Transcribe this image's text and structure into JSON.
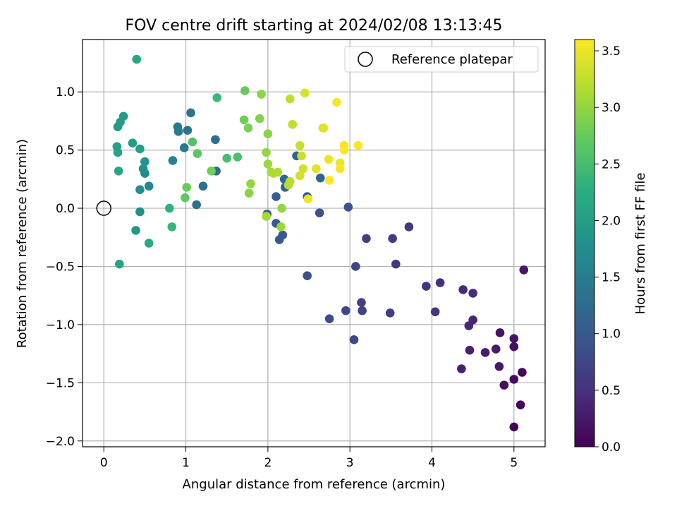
{
  "chart_data": {
    "type": "scatter",
    "title": "FOV centre drift starting at 2024/02/08 13:13:45",
    "xlabel": "Angular distance from reference (arcmin)",
    "ylabel": "Rotation from reference (arcmin)",
    "xlim": [
      -0.26,
      5.38
    ],
    "ylim": [
      -2.05,
      1.45
    ],
    "xticks": [
      0,
      1,
      2,
      3,
      4,
      5
    ],
    "xtick_labels": [
      "0",
      "1",
      "2",
      "3",
      "4",
      "5"
    ],
    "yticks": [
      -2.0,
      -1.5,
      -1.0,
      -0.5,
      0.0,
      0.5,
      1.0
    ],
    "ytick_labels": [
      "−2.0",
      "−1.5",
      "−1.0",
      "−0.5",
      "0.0",
      "0.5",
      "1.0"
    ],
    "grid": true,
    "legend": {
      "location": "top-right",
      "entries": [
        "Reference platepar"
      ]
    },
    "reference_point": {
      "x": 0,
      "y": 0,
      "label": "Reference platepar"
    },
    "colorbar": {
      "label": "Hours from first FF file",
      "colormap": "viridis",
      "range": [
        0.0,
        3.6
      ],
      "ticks": [
        0.0,
        0.5,
        1.0,
        1.5,
        2.0,
        2.5,
        3.0,
        3.5
      ],
      "tick_labels": [
        "0.0",
        "0.5",
        "1.0",
        "1.5",
        "2.0",
        "2.5",
        "3.0",
        "3.5"
      ]
    },
    "points_fields": [
      "x",
      "y",
      "hours"
    ],
    "points": [
      [
        5.0,
        -1.88,
        0.03
      ],
      [
        5.08,
        -1.69,
        0.05
      ],
      [
        5.1,
        -1.41,
        0.08
      ],
      [
        5.0,
        -1.47,
        0.1
      ],
      [
        4.88,
        -1.52,
        0.13
      ],
      [
        5.0,
        -1.19,
        0.15
      ],
      [
        5.0,
        -1.12,
        0.18
      ],
      [
        4.83,
        -1.07,
        0.2
      ],
      [
        5.12,
        -0.53,
        0.23
      ],
      [
        4.82,
        -1.36,
        0.25
      ],
      [
        4.78,
        -1.21,
        0.28
      ],
      [
        4.65,
        -1.24,
        0.3
      ],
      [
        4.36,
        -1.38,
        0.33
      ],
      [
        4.46,
        -1.22,
        0.35
      ],
      [
        4.5,
        -0.96,
        0.38
      ],
      [
        4.45,
        -1.01,
        0.4
      ],
      [
        4.38,
        -0.7,
        0.43
      ],
      [
        4.5,
        -0.73,
        0.45
      ],
      [
        4.1,
        -0.64,
        0.48
      ],
      [
        3.93,
        -0.67,
        0.5
      ],
      [
        4.04,
        -0.89,
        0.53
      ],
      [
        3.72,
        -0.16,
        0.58
      ],
      [
        3.56,
        -0.48,
        0.6
      ],
      [
        3.52,
        -0.26,
        0.63
      ],
      [
        3.49,
        -0.9,
        0.65
      ],
      [
        3.2,
        -0.26,
        0.68
      ],
      [
        3.14,
        -0.81,
        0.7
      ],
      [
        3.15,
        -0.88,
        0.73
      ],
      [
        3.07,
        -0.5,
        0.75
      ],
      [
        3.05,
        -1.13,
        0.78
      ],
      [
        2.95,
        -0.88,
        0.8
      ],
      [
        2.75,
        -0.95,
        0.85
      ],
      [
        2.48,
        -0.58,
        0.88
      ],
      [
        2.63,
        -0.04,
        0.9
      ],
      [
        2.98,
        0.01,
        0.93
      ],
      [
        2.48,
        0.1,
        0.97
      ],
      [
        2.14,
        -0.27,
        1.0
      ],
      [
        2.18,
        -0.23,
        1.02
      ],
      [
        2.1,
        -0.13,
        1.05
      ],
      [
        1.99,
        -0.05,
        1.07
      ],
      [
        2.1,
        0.1,
        1.1
      ],
      [
        2.21,
        0.18,
        1.12
      ],
      [
        2.64,
        0.26,
        1.15
      ],
      [
        2.35,
        0.45,
        1.17
      ],
      [
        2.2,
        0.25,
        1.2
      ],
      [
        1.37,
        0.32,
        1.25
      ],
      [
        1.36,
        0.59,
        1.27
      ],
      [
        1.21,
        0.19,
        1.32
      ],
      [
        1.13,
        0.03,
        1.35
      ],
      [
        1.06,
        0.82,
        1.37
      ],
      [
        1.02,
        0.67,
        1.4
      ],
      [
        0.98,
        0.52,
        1.45
      ],
      [
        0.91,
        0.66,
        1.48
      ],
      [
        0.9,
        0.7,
        1.5
      ],
      [
        0.84,
        0.41,
        1.55
      ],
      [
        0.55,
        0.19,
        1.65
      ],
      [
        0.5,
        0.3,
        1.7
      ],
      [
        0.44,
        0.16,
        1.75
      ],
      [
        0.48,
        0.34,
        1.8
      ],
      [
        0.44,
        -0.03,
        1.82
      ],
      [
        0.5,
        0.4,
        1.85
      ],
      [
        0.39,
        -0.19,
        1.9
      ],
      [
        0.17,
        0.7,
        1.92
      ],
      [
        0.2,
        0.74,
        1.95
      ],
      [
        0.24,
        0.79,
        1.97
      ],
      [
        0.44,
        0.51,
        2.0
      ],
      [
        0.35,
        0.56,
        2.02
      ],
      [
        0.17,
        0.48,
        2.05
      ],
      [
        0.16,
        0.53,
        2.07
      ],
      [
        0.19,
        -0.48,
        2.1
      ],
      [
        0.18,
        0.32,
        2.12
      ],
      [
        0.4,
        1.28,
        2.15
      ],
      [
        0.55,
        -0.3,
        2.2
      ],
      [
        0.8,
        0.0,
        2.3
      ],
      [
        0.83,
        -0.16,
        2.35
      ],
      [
        1.38,
        0.95,
        2.4
      ],
      [
        1.5,
        0.43,
        2.5
      ],
      [
        1.63,
        0.44,
        2.55
      ],
      [
        1.08,
        0.57,
        2.6
      ],
      [
        1.14,
        0.47,
        2.65
      ],
      [
        0.99,
        0.09,
        2.7
      ],
      [
        1.01,
        0.18,
        2.75
      ],
      [
        1.31,
        0.32,
        2.8
      ],
      [
        1.72,
        1.01,
        2.75
      ],
      [
        1.71,
        0.76,
        2.8
      ],
      [
        1.76,
        0.69,
        2.85
      ],
      [
        1.9,
        0.77,
        2.9
      ],
      [
        1.92,
        0.98,
        2.95
      ],
      [
        2.0,
        0.64,
        2.95
      ],
      [
        1.98,
        0.48,
        3.0
      ],
      [
        1.77,
        0.13,
        2.95
      ],
      [
        1.79,
        0.21,
        3.0
      ],
      [
        2.17,
        0.0,
        3.0
      ],
      [
        2.16,
        -0.16,
        3.05
      ],
      [
        2.0,
        0.38,
        3.05
      ],
      [
        1.98,
        -0.07,
        3.1
      ],
      [
        2.04,
        0.31,
        3.1
      ],
      [
        2.07,
        0.3,
        3.15
      ],
      [
        2.12,
        0.31,
        3.15
      ],
      [
        2.25,
        0.2,
        3.2
      ],
      [
        2.27,
        0.23,
        3.2
      ],
      [
        2.3,
        0.72,
        3.25
      ],
      [
        2.27,
        0.94,
        3.25
      ],
      [
        2.39,
        0.54,
        3.3
      ],
      [
        2.41,
        0.45,
        3.3
      ],
      [
        2.39,
        0.28,
        3.35
      ],
      [
        2.43,
        0.34,
        3.35
      ],
      [
        2.45,
        0.99,
        3.4
      ],
      [
        2.67,
        0.69,
        3.4
      ],
      [
        2.68,
        0.69,
        3.45
      ],
      [
        2.59,
        0.34,
        3.45
      ],
      [
        2.74,
        0.42,
        3.5
      ],
      [
        2.49,
        0.08,
        3.5
      ],
      [
        2.84,
        0.91,
        3.55
      ],
      [
        2.88,
        0.39,
        3.5
      ],
      [
        2.88,
        0.34,
        3.55
      ],
      [
        2.93,
        0.54,
        3.55
      ],
      [
        2.93,
        0.5,
        3.6
      ],
      [
        3.1,
        0.54,
        3.6
      ],
      [
        2.75,
        0.24,
        3.6
      ]
    ]
  }
}
